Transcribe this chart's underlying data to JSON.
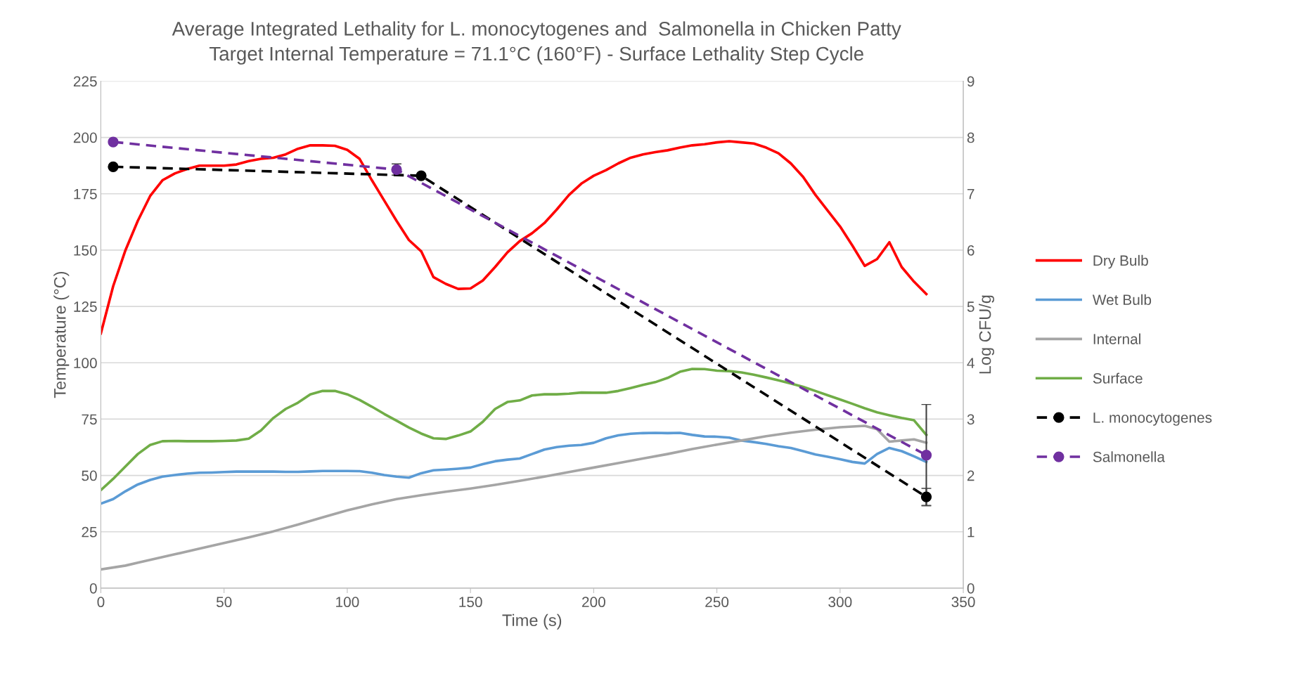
{
  "chart_data": {
    "type": "line",
    "title": "Average Integrated Lethality for L. monocytogenes and  Salmonella in Chicken Patty",
    "subtitle": "Target Internal Temperature = 71.1°C (160°F) - Surface Lethality Step Cycle",
    "xlabel": "Time (s)",
    "ylabel": "Temperature (°C)",
    "y2label": "Log CFU/g",
    "xlim": [
      0,
      350
    ],
    "xticks": [
      0,
      50,
      100,
      150,
      200,
      250,
      300,
      350
    ],
    "ylim": [
      0,
      225
    ],
    "yticks": [
      0,
      25,
      50,
      75,
      100,
      125,
      150,
      175,
      200,
      225
    ],
    "y2lim": [
      0,
      9
    ],
    "y2ticks": [
      0,
      1,
      2,
      3,
      4,
      5,
      6,
      7,
      8,
      9
    ],
    "grid": "y",
    "legend": "right",
    "x": [
      0,
      5,
      10,
      15,
      20,
      25,
      30,
      35,
      40,
      45,
      50,
      55,
      60,
      65,
      70,
      75,
      80,
      85,
      90,
      95,
      100,
      105,
      110,
      115,
      120,
      125,
      130,
      135,
      140,
      145,
      150,
      155,
      160,
      165,
      170,
      175,
      180,
      185,
      190,
      195,
      200,
      205,
      210,
      215,
      220,
      225,
      230,
      235,
      240,
      245,
      250,
      255,
      260,
      265,
      270,
      275,
      280,
      285,
      290,
      295,
      300,
      305,
      310,
      315,
      320,
      325,
      330,
      335
    ],
    "series": [
      {
        "name": "Dry Bulb",
        "color": "#ff0000",
        "marker": "none",
        "line_style": "solid",
        "values": [
          113,
          134,
          150,
          163,
          174,
          181,
          184,
          186,
          187.5,
          187.5,
          187.5,
          188,
          189.5,
          190.5,
          191,
          192.5,
          195,
          196.5,
          196.5,
          196.3,
          194.5,
          190.5,
          181,
          172,
          163,
          154.5,
          149.5,
          138,
          135,
          132.8,
          133,
          136.5,
          142.5,
          149,
          154,
          157.5,
          162,
          168,
          174.5,
          179.5,
          183,
          185.5,
          188.5,
          191,
          192.5,
          193.5,
          194.3,
          195.5,
          196.5,
          197,
          197.8,
          198.3,
          197.8,
          197.3,
          195.5,
          193,
          188.5,
          182.5,
          174.5,
          167.5,
          160.5,
          152,
          143,
          146,
          153.5,
          142.5,
          136,
          130.5
        ]
      },
      {
        "name": "Wet Bulb",
        "color": "#5b9bd5",
        "marker": "none",
        "line_style": "solid",
        "values": [
          37.5,
          39.5,
          43,
          46,
          48,
          49.5,
          50.2,
          50.8,
          51.2,
          51.3,
          51.5,
          51.7,
          51.7,
          51.7,
          51.7,
          51.6,
          51.6,
          51.8,
          52,
          52,
          52,
          51.9,
          51.2,
          50.2,
          49.5,
          49,
          51,
          52.3,
          52.6,
          53,
          53.5,
          55,
          56.3,
          57,
          57.5,
          59.5,
          61.5,
          62.6,
          63.2,
          63.5,
          64.5,
          66.5,
          67.8,
          68.5,
          68.8,
          68.9,
          68.8,
          68.9,
          68,
          67.3,
          67.2,
          66.8,
          65.5,
          64.8,
          64,
          63,
          62.2,
          60.8,
          59.3,
          58.3,
          57.2,
          56,
          55.3,
          59.5,
          62.2,
          60.8,
          58.5,
          56
        ]
      },
      {
        "name": "Internal",
        "color": "#a5a5a5",
        "marker": "none",
        "line_style": "solid",
        "x": [
          0,
          10,
          15,
          20,
          30,
          40,
          50,
          60,
          70,
          80,
          90,
          100,
          110,
          120,
          130,
          140,
          150,
          160,
          170,
          180,
          190,
          200,
          210,
          220,
          230,
          240,
          250,
          260,
          270,
          280,
          290,
          300,
          310,
          315,
          320,
          325,
          330,
          335
        ],
        "values": [
          8.3,
          10,
          11.3,
          12.5,
          15,
          17.5,
          20,
          22.5,
          25.2,
          28.2,
          31.4,
          34.5,
          37.2,
          39.5,
          41.2,
          42.8,
          44.2,
          45.8,
          47.6,
          49.5,
          51.5,
          53.5,
          55.5,
          57.5,
          59.5,
          61.7,
          63.7,
          65.5,
          67.4,
          69,
          70.3,
          71.4,
          72,
          70.5,
          65,
          65.5,
          66,
          64.5
        ]
      },
      {
        "name": "Surface",
        "color": "#70ad47",
        "marker": "none",
        "line_style": "solid",
        "values": [
          43.5,
          48.5,
          54,
          59.5,
          63.5,
          65.2,
          65.3,
          65.2,
          65.2,
          65.2,
          65.3,
          65.5,
          66.3,
          70,
          75.5,
          79.5,
          82.3,
          86,
          87.5,
          87.5,
          86,
          83.5,
          80.5,
          77.3,
          74.3,
          71.3,
          68.6,
          66.5,
          66.2,
          67.7,
          69.5,
          73.8,
          79.5,
          82.6,
          83.3,
          85.5,
          86,
          86,
          86.3,
          86.8,
          86.7,
          86.7,
          87.5,
          88.8,
          90.2,
          91.4,
          93.3,
          96,
          97.3,
          97.2,
          96.5,
          96.3,
          95.7,
          94.7,
          93.5,
          92.2,
          90.8,
          89.3,
          87.5,
          85.6,
          83.7,
          81.8,
          79.8,
          78,
          76.7,
          75.5,
          74.5,
          68
        ]
      },
      {
        "name": "L. monocytogenes",
        "color": "#000000",
        "axis": "y2",
        "marker": "circle",
        "line_style": "dashed",
        "x": [
          5,
          130,
          335
        ],
        "values": [
          7.48,
          7.32,
          1.62
        ],
        "errors": [
          null,
          null,
          [
            1.47,
            1.77
          ]
        ]
      },
      {
        "name": "Salmonella",
        "color": "#7030a0",
        "axis": "y2",
        "marker": "circle",
        "line_style": "dashed",
        "x": [
          5,
          120,
          335
        ],
        "values": [
          7.92,
          7.43,
          2.36
        ],
        "errors": [
          null,
          [
            7.33,
            7.53
          ],
          [
            1.46,
            3.26
          ]
        ]
      }
    ]
  }
}
